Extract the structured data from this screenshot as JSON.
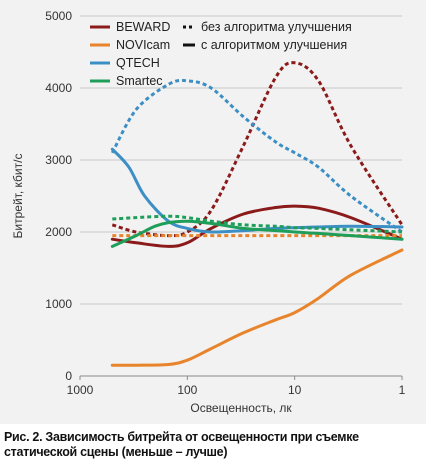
{
  "caption": "Рис. 2. Зависимость битрейта от освещенности при съемке статической сцены (меньше – лучше)",
  "chart_data": {
    "type": "line",
    "xlabel": "Освещенность, лк",
    "ylabel": "Битрейт, кбит/с",
    "x_scale": "log",
    "x_reversed": true,
    "xlim": [
      1000,
      1
    ],
    "ylim": [
      0,
      5000
    ],
    "xticks": [
      "1000",
      "100",
      "10",
      "1"
    ],
    "yticks": [
      "0",
      "1000",
      "2000",
      "3000",
      "4000",
      "5000"
    ],
    "grid": {
      "horizontal": true,
      "vertical": false
    },
    "legend": {
      "placement": "top",
      "series": [
        "BEWARD",
        "NOVIcam",
        "QTECH",
        "Smartec"
      ],
      "styles": [
        "без алгоритма улучшения",
        "с алгоритмом улучшения"
      ]
    },
    "series": [
      {
        "name": "BEWARD",
        "style": "без алгоритма улучшения",
        "color": "#8b1a1a",
        "x": [
          500,
          300,
          150,
          100,
          60,
          30,
          15,
          10,
          6,
          3,
          1
        ],
        "y": [
          2100,
          2000,
          1950,
          2000,
          2300,
          3200,
          4150,
          4350,
          4100,
          3200,
          2100
        ]
      },
      {
        "name": "BEWARD",
        "style": "с алгоритмом улучшения",
        "color": "#8b1a1a",
        "x": [
          500,
          300,
          150,
          100,
          60,
          30,
          15,
          10,
          6,
          3,
          1
        ],
        "y": [
          1900,
          1850,
          1800,
          1850,
          2050,
          2250,
          2340,
          2360,
          2330,
          2200,
          1900
        ]
      },
      {
        "name": "NOVIcam",
        "style": "без алгоритма улучшения",
        "color": "#e8842c",
        "x": [
          500,
          100,
          10,
          1
        ],
        "y": [
          1950,
          1950,
          1950,
          1950
        ]
      },
      {
        "name": "NOVIcam",
        "style": "с алгоритмом улучшения",
        "color": "#e8842c",
        "x": [
          500,
          300,
          150,
          100,
          60,
          30,
          15,
          10,
          6,
          3,
          1
        ],
        "y": [
          150,
          150,
          160,
          220,
          380,
          600,
          780,
          880,
          1080,
          1400,
          1750
        ]
      },
      {
        "name": "QTECH",
        "style": "без алгоритма улучшения",
        "color": "#3b8fc4",
        "x": [
          500,
          300,
          150,
          100,
          60,
          30,
          15,
          10,
          6,
          3,
          1
        ],
        "y": [
          3100,
          3700,
          4050,
          4100,
          4000,
          3600,
          3250,
          3100,
          2900,
          2500,
          2000
        ]
      },
      {
        "name": "QTECH",
        "style": "с алгоритмом улучшения",
        "color": "#3b8fc4",
        "x": [
          500,
          350,
          250,
          150,
          100,
          60,
          30,
          15,
          10,
          6,
          3,
          1
        ],
        "y": [
          3150,
          2900,
          2500,
          2150,
          2050,
          2000,
          2020,
          2050,
          2060,
          2070,
          2080,
          2070
        ]
      },
      {
        "name": "Smartec",
        "style": "без алгоритма улучшения",
        "color": "#1f9e5a",
        "x": [
          500,
          300,
          150,
          100,
          60,
          30,
          15,
          10,
          6,
          3,
          1
        ],
        "y": [
          2180,
          2200,
          2220,
          2200,
          2150,
          2100,
          2080,
          2060,
          2050,
          2030,
          2000
        ]
      },
      {
        "name": "Smartec",
        "style": "с алгоритмом улучшения",
        "color": "#1f9e5a",
        "x": [
          500,
          300,
          200,
          150,
          100,
          60,
          30,
          15,
          10,
          6,
          3,
          1
        ],
        "y": [
          1800,
          1950,
          2080,
          2130,
          2150,
          2120,
          2050,
          2020,
          2000,
          1980,
          1950,
          1900
        ]
      }
    ]
  }
}
